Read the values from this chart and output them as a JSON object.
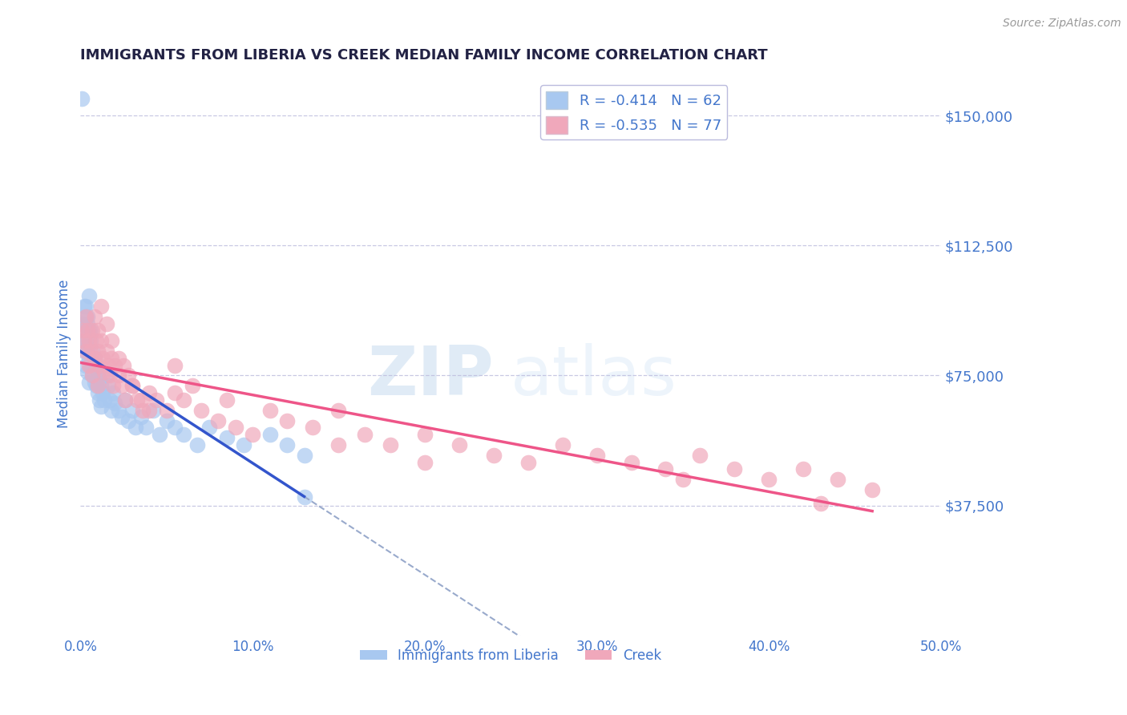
{
  "title": "IMMIGRANTS FROM LIBERIA VS CREEK MEDIAN FAMILY INCOME CORRELATION CHART",
  "source_text": "Source: ZipAtlas.com",
  "ylabel": "Median Family Income",
  "xlim": [
    0.0,
    0.5
  ],
  "ylim": [
    0,
    162500
  ],
  "yticks": [
    0,
    37500,
    75000,
    112500,
    150000
  ],
  "ytick_labels": [
    "",
    "$37,500",
    "$75,000",
    "$112,500",
    "$150,000"
  ],
  "xticks": [
    0.0,
    0.1,
    0.2,
    0.3,
    0.4,
    0.5
  ],
  "xtick_labels": [
    "0.0%",
    "10.0%",
    "20.0%",
    "30.0%",
    "40.0%",
    "50.0%"
  ],
  "blue_R": -0.414,
  "blue_N": 62,
  "pink_R": -0.535,
  "pink_N": 77,
  "blue_color": "#A8C8F0",
  "pink_color": "#F0A8BB",
  "blue_line_color": "#3355CC",
  "pink_line_color": "#EE5588",
  "dashed_color": "#99AACC",
  "bg_color": "#FFFFFF",
  "grid_color": "#BBBBDD",
  "title_color": "#222244",
  "axis_label_color": "#4477CC",
  "tick_color": "#4477CC",
  "legend_label1": "Immigrants from Liberia",
  "legend_label2": "Creek",
  "watermark_zip": "ZIP",
  "watermark_atlas": "atlas",
  "blue_scatter_x": [
    0.001,
    0.001,
    0.002,
    0.002,
    0.002,
    0.003,
    0.003,
    0.003,
    0.004,
    0.004,
    0.004,
    0.005,
    0.005,
    0.005,
    0.006,
    0.006,
    0.007,
    0.007,
    0.008,
    0.008,
    0.009,
    0.009,
    0.01,
    0.01,
    0.011,
    0.011,
    0.012,
    0.012,
    0.013,
    0.014,
    0.015,
    0.016,
    0.017,
    0.018,
    0.019,
    0.02,
    0.022,
    0.024,
    0.026,
    0.028,
    0.03,
    0.032,
    0.035,
    0.038,
    0.042,
    0.046,
    0.05,
    0.055,
    0.06,
    0.068,
    0.075,
    0.085,
    0.095,
    0.11,
    0.12,
    0.13,
    0.003,
    0.004,
    0.005,
    0.006,
    0.001,
    0.13
  ],
  "blue_scatter_y": [
    90000,
    85000,
    95000,
    88000,
    82000,
    92000,
    85000,
    78000,
    90000,
    83000,
    76000,
    88000,
    80000,
    73000,
    85000,
    78000,
    82000,
    75000,
    80000,
    73000,
    78000,
    72000,
    76000,
    70000,
    74000,
    68000,
    72000,
    66000,
    70000,
    68000,
    75000,
    72000,
    68000,
    65000,
    70000,
    67000,
    65000,
    63000,
    68000,
    62000,
    65000,
    60000,
    63000,
    60000,
    65000,
    58000,
    62000,
    60000,
    58000,
    55000,
    60000,
    57000,
    55000,
    58000,
    55000,
    52000,
    95000,
    92000,
    98000,
    88000,
    155000,
    40000
  ],
  "pink_scatter_x": [
    0.001,
    0.002,
    0.003,
    0.003,
    0.004,
    0.005,
    0.005,
    0.006,
    0.007,
    0.007,
    0.008,
    0.009,
    0.01,
    0.01,
    0.011,
    0.012,
    0.013,
    0.014,
    0.015,
    0.016,
    0.017,
    0.018,
    0.019,
    0.02,
    0.022,
    0.024,
    0.026,
    0.028,
    0.03,
    0.033,
    0.036,
    0.04,
    0.044,
    0.05,
    0.055,
    0.06,
    0.07,
    0.08,
    0.09,
    0.1,
    0.11,
    0.12,
    0.135,
    0.15,
    0.165,
    0.18,
    0.2,
    0.22,
    0.24,
    0.26,
    0.28,
    0.3,
    0.32,
    0.34,
    0.36,
    0.38,
    0.4,
    0.42,
    0.44,
    0.46,
    0.008,
    0.01,
    0.012,
    0.015,
    0.018,
    0.022,
    0.025,
    0.03,
    0.035,
    0.04,
    0.055,
    0.065,
    0.085,
    0.15,
    0.2,
    0.35,
    0.43
  ],
  "pink_scatter_y": [
    88000,
    85000,
    92000,
    82000,
    88000,
    85000,
    78000,
    82000,
    88000,
    75000,
    80000,
    85000,
    82000,
    72000,
    78000,
    85000,
    80000,
    76000,
    82000,
    78000,
    75000,
    80000,
    72000,
    78000,
    75000,
    72000,
    68000,
    75000,
    72000,
    68000,
    65000,
    70000,
    68000,
    65000,
    70000,
    68000,
    65000,
    62000,
    60000,
    58000,
    65000,
    62000,
    60000,
    65000,
    58000,
    55000,
    58000,
    55000,
    52000,
    50000,
    55000,
    52000,
    50000,
    48000,
    52000,
    48000,
    45000,
    48000,
    45000,
    42000,
    92000,
    88000,
    95000,
    90000,
    85000,
    80000,
    78000,
    72000,
    68000,
    65000,
    78000,
    72000,
    68000,
    55000,
    50000,
    45000,
    38000
  ]
}
